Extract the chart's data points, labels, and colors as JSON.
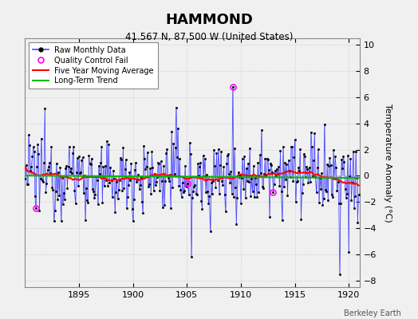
{
  "title": "HAMMOND",
  "subtitle": "41.567 N, 87.500 W (United States)",
  "ylabel": "Temperature Anomaly (°C)",
  "credit": "Berkeley Earth",
  "xlim": [
    1890.0,
    1921.0
  ],
  "ylim": [
    -8.5,
    10.5
  ],
  "yticks": [
    -8,
    -6,
    -4,
    -2,
    0,
    2,
    4,
    6,
    8,
    10
  ],
  "xticks": [
    1895,
    1900,
    1905,
    1910,
    1915,
    1920
  ],
  "bg_color": "#f0f0f0",
  "raw_color": "#4444ff",
  "ma_color": "#ff0000",
  "trend_color": "#00bb00",
  "qc_color": "#ff00ff",
  "seed": 12345,
  "start_year": 1890.0,
  "n_months": 372
}
